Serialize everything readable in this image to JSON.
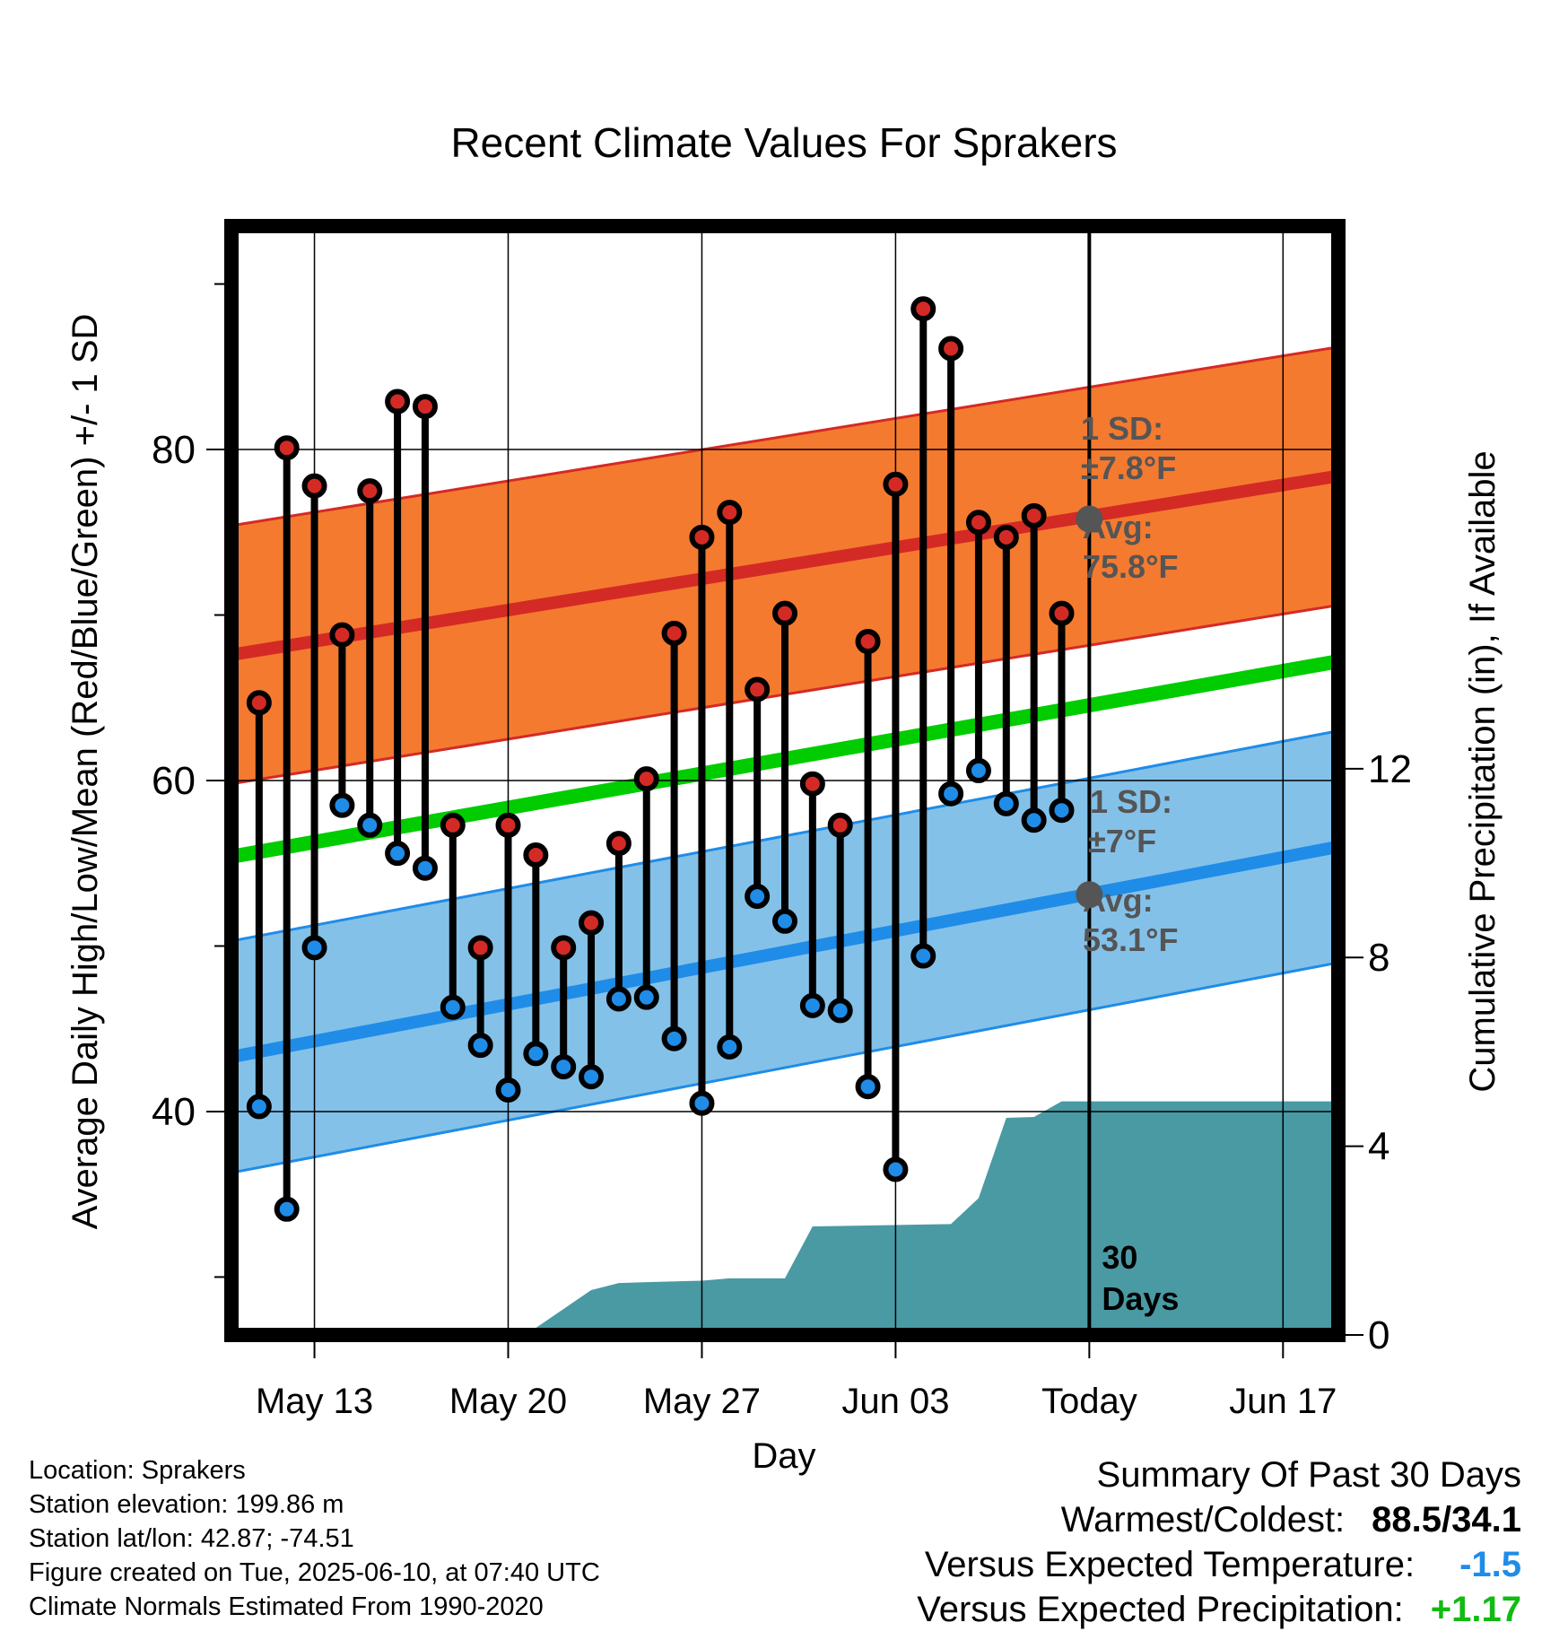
{
  "chart_data": {
    "type": "line",
    "title": "Recent Climate Values For Sprakers",
    "xlabel": "Day",
    "ylabel": "Average Daily High/Low/Mean (Red/Blue/Green) +/- 1 SD",
    "y2label": "Cumulative Precipitation (in), If Available",
    "x_tick_labels": [
      "May 13",
      "May 20",
      "May 27",
      "Jun 03",
      "Today",
      "Jun 17"
    ],
    "x_tick_dates": [
      "2025-05-13",
      "2025-05-20",
      "2025-05-27",
      "2025-06-03",
      "2025-06-10",
      "2025-06-17"
    ],
    "xlim": [
      "2025-05-10",
      "2025-06-19"
    ],
    "ylim": [
      26.5,
      93.5
    ],
    "y_ticks": [
      40,
      60,
      80
    ],
    "y2lim": [
      0,
      23.5
    ],
    "y2_ticks": [
      0,
      4,
      8,
      12
    ],
    "grid": true,
    "today": "2025-06-10",
    "today_annotation": [
      "30",
      "Days"
    ],
    "dates": [
      "2025-05-11",
      "2025-05-12",
      "2025-05-13",
      "2025-05-14",
      "2025-05-15",
      "2025-05-16",
      "2025-05-17",
      "2025-05-18",
      "2025-05-19",
      "2025-05-20",
      "2025-05-21",
      "2025-05-22",
      "2025-05-23",
      "2025-05-24",
      "2025-05-25",
      "2025-05-26",
      "2025-05-27",
      "2025-05-28",
      "2025-05-29",
      "2025-05-30",
      "2025-05-31",
      "2025-06-01",
      "2025-06-02",
      "2025-06-03",
      "2025-06-04",
      "2025-06-05",
      "2025-06-06",
      "2025-06-07",
      "2025-06-08",
      "2025-06-09"
    ],
    "series": [
      {
        "values": [
          64.7,
          80.1,
          77.8,
          68.8,
          77.5,
          82.9,
          82.6,
          57.3,
          49.9,
          57.3,
          55.5,
          49.9,
          51.4,
          56.2,
          60.1,
          68.9,
          74.7,
          76.2,
          65.5,
          70.1,
          59.8,
          57.3,
          68.4,
          77.9,
          88.5,
          86.1,
          75.6,
          74.7,
          76.0,
          70.1
        ]
      },
      {
        "values": [
          40.3,
          34.1,
          49.9,
          58.5,
          57.3,
          55.6,
          54.7,
          46.3,
          44.0,
          41.3,
          43.5,
          42.7,
          42.1,
          46.8,
          46.9,
          44.4,
          40.5,
          43.9,
          53.0,
          51.5,
          46.4,
          46.1,
          41.5,
          36.5,
          49.4,
          59.2,
          60.6,
          58.6,
          57.6,
          58.2
        ]
      }
    ],
    "normals": {
      "start_date": "2025-05-10",
      "end_date": "2025-06-19",
      "high_mean": [
        67.6,
        78.4
      ],
      "high_sd": 7.8,
      "low_mean": [
        43.3,
        56.0
      ],
      "low_sd": 7.0,
      "mean": [
        55.4,
        67.2
      ],
      "today_high_avg": 75.8,
      "today_low_avg": 53.1
    },
    "precip_cumulative": [
      [
        "2025-05-10",
        0
      ],
      [
        "2025-05-20",
        0
      ],
      [
        "2025-05-21",
        0.15
      ],
      [
        "2025-05-23",
        0.95
      ],
      [
        "2025-05-24",
        1.1
      ],
      [
        "2025-05-25",
        1.12
      ],
      [
        "2025-05-27",
        1.15
      ],
      [
        "2025-05-28",
        1.2
      ],
      [
        "2025-05-30",
        1.2
      ],
      [
        "2025-05-31",
        2.3
      ],
      [
        "2025-06-02",
        2.32
      ],
      [
        "2025-06-05",
        2.35
      ],
      [
        "2025-06-06",
        2.9
      ],
      [
        "2025-06-07",
        4.6
      ],
      [
        "2025-06-08",
        4.62
      ],
      [
        "2025-06-09",
        4.95
      ],
      [
        "2025-06-19",
        4.95
      ]
    ],
    "colors": {
      "high_band": "#f47a30",
      "high_line": "#d42a25",
      "low_band": "#84c1e8",
      "low_line": "#1f8ce8",
      "mean_line": "#00cc00",
      "precip": "#4a9aa4",
      "high_marker": "#d42a25",
      "low_marker": "#1f8ce8",
      "today_marker": "#555555"
    },
    "annotations": {
      "high_sd_label": "1 SD:",
      "high_sd_value": "±7.8°F",
      "high_avg_label": "Avg:",
      "high_avg_value": "75.8°F",
      "low_sd_label": "1 SD:",
      "low_sd_value": "±7°F",
      "low_avg_label": "Avg:",
      "low_avg_value": "53.1°F"
    }
  },
  "footer": {
    "location": "Location: Sprakers",
    "elevation": "Station elevation: 199.86 m",
    "latlon": "Station lat/lon: 42.87; -74.51",
    "created": "Figure created on Tue, 2025-06-10, at 07:40 UTC",
    "normals": "Climate Normals Estimated From 1990-2020"
  },
  "summary": {
    "title": "Summary Of Past 30 Days",
    "warm_cold_label": "Warmest/Coldest:",
    "warm_cold_value": "88.5/34.1",
    "temp_label": "Versus Expected Temperature:",
    "temp_value": "-1.5",
    "temp_color": "#1f8ce8",
    "precip_label": "Versus Expected Precipitation:",
    "precip_value": "+1.17",
    "precip_color": "#11bb11"
  }
}
